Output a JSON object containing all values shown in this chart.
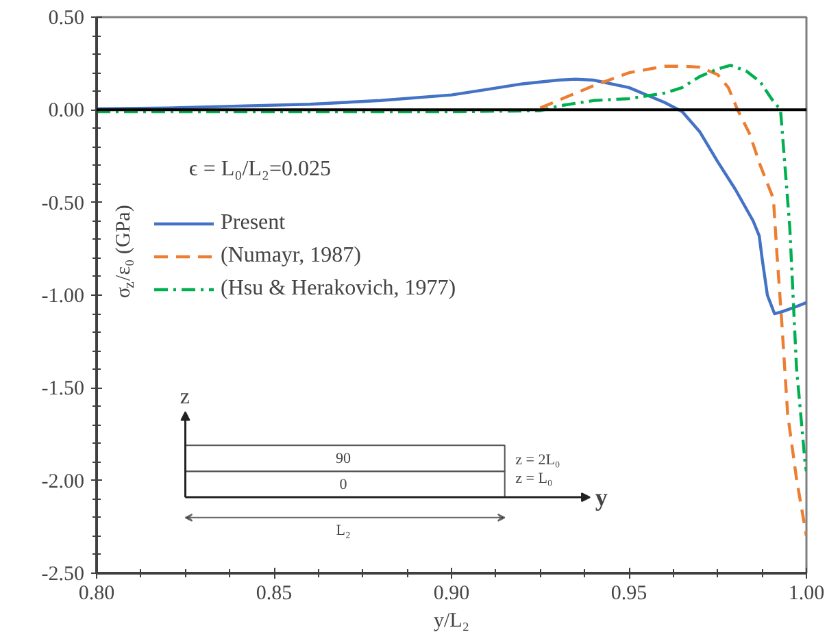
{
  "chart_data": {
    "type": "line",
    "xlabel": "y/L₂",
    "ylabel": "σ$_{z}$/ε₀ (GPa)",
    "xlim": [
      0.8,
      1.0
    ],
    "ylim": [
      -2.5,
      0.5
    ],
    "xticks": [
      {
        "value": 0.8,
        "label": "0.80"
      },
      {
        "value": 0.8125,
        "label": null
      },
      {
        "value": 0.825,
        "label": null
      },
      {
        "value": 0.8375,
        "label": null
      },
      {
        "value": 0.85,
        "label": "0.85"
      },
      {
        "value": 0.8625,
        "label": null
      },
      {
        "value": 0.875,
        "label": null
      },
      {
        "value": 0.8875,
        "label": null
      },
      {
        "value": 0.9,
        "label": "0.90"
      },
      {
        "value": 0.9125,
        "label": null
      },
      {
        "value": 0.925,
        "label": null
      },
      {
        "value": 0.9375,
        "label": null
      },
      {
        "value": 0.95,
        "label": "0.95"
      },
      {
        "value": 0.9625,
        "label": null
      },
      {
        "value": 0.975,
        "label": null
      },
      {
        "value": 0.9875,
        "label": null
      },
      {
        "value": 1.0,
        "label": "1.00"
      }
    ],
    "yticks": [
      {
        "value": -2.5,
        "label": "-2.50"
      },
      {
        "value": -2.4,
        "label": null
      },
      {
        "value": -2.3,
        "label": null
      },
      {
        "value": -2.2,
        "label": null
      },
      {
        "value": -2.1,
        "label": null
      },
      {
        "value": -2.0,
        "label": "-2.00"
      },
      {
        "value": -1.9,
        "label": null
      },
      {
        "value": -1.8,
        "label": null
      },
      {
        "value": -1.7,
        "label": null
      },
      {
        "value": -1.6,
        "label": null
      },
      {
        "value": -1.5,
        "label": "-1.50"
      },
      {
        "value": -1.4,
        "label": null
      },
      {
        "value": -1.3,
        "label": null
      },
      {
        "value": -1.2,
        "label": null
      },
      {
        "value": -1.1,
        "label": null
      },
      {
        "value": -1.0,
        "label": "-1.00"
      },
      {
        "value": -0.9,
        "label": null
      },
      {
        "value": -0.8,
        "label": null
      },
      {
        "value": -0.7,
        "label": null
      },
      {
        "value": -0.6,
        "label": null
      },
      {
        "value": -0.5,
        "label": "-0.50"
      },
      {
        "value": -0.4,
        "label": null
      },
      {
        "value": -0.3,
        "label": null
      },
      {
        "value": -0.2,
        "label": null
      },
      {
        "value": -0.1,
        "label": null
      },
      {
        "value": 0.0,
        "label": "0.00"
      },
      {
        "value": 0.1,
        "label": null
      },
      {
        "value": 0.2,
        "label": null
      },
      {
        "value": 0.3,
        "label": null
      },
      {
        "value": 0.4,
        "label": null
      },
      {
        "value": 0.5,
        "label": "0.50"
      }
    ],
    "grid": false,
    "legend": "top left",
    "marker": "none",
    "ref_lines": [
      {
        "axis": "y",
        "value": 0,
        "color": "#000000",
        "line_style": "solid"
      }
    ],
    "annotations": [
      "ϵ = L₀/L₂=0.025",
      "z",
      "y",
      "90",
      "0",
      "z = 2L₀",
      "z = L₀",
      "L₂"
    ],
    "series": [
      {
        "name": "Present",
        "color": "#4472c4",
        "line_style": "solid",
        "x": [
          0.8,
          0.82,
          0.84,
          0.86,
          0.88,
          0.9,
          0.91,
          0.92,
          0.93,
          0.935,
          0.94,
          0.95,
          0.955,
          0.96,
          0.965,
          0.97,
          0.975,
          0.98,
          0.985,
          0.9867,
          0.9875,
          0.989,
          0.991,
          0.993,
          0.996,
          1.0
        ],
        "values": [
          0.005,
          0.01,
          0.02,
          0.03,
          0.05,
          0.08,
          0.11,
          0.14,
          0.16,
          0.165,
          0.16,
          0.12,
          0.08,
          0.04,
          -0.01,
          -0.12,
          -0.28,
          -0.43,
          -0.6,
          -0.68,
          -0.8,
          -1.0,
          -1.1,
          -1.09,
          -1.07,
          -1.04
        ]
      },
      {
        "name": "(Numayr, 1987)",
        "color": "#ed7d31",
        "line_style": "dashed",
        "x": [
          0.925,
          0.93,
          0.94,
          0.95,
          0.96,
          0.965,
          0.97,
          0.975,
          0.978,
          0.9806,
          0.984,
          0.987,
          0.9907,
          0.9917,
          0.993,
          0.9947,
          0.9972,
          1.0
        ],
        "values": [
          0.01,
          0.05,
          0.13,
          0.2,
          0.235,
          0.235,
          0.23,
          0.19,
          0.12,
          0.0,
          -0.13,
          -0.3,
          -0.48,
          -0.78,
          -1.13,
          -1.64,
          -1.99,
          -2.3
        ]
      },
      {
        "name": "(Hsu & Herakovich, 1977)",
        "color": "#00b050",
        "line_style": "dashdot",
        "x": [
          0.8,
          0.85,
          0.9,
          0.925,
          0.93,
          0.94,
          0.95,
          0.96,
          0.965,
          0.97,
          0.975,
          0.9786,
          0.983,
          0.987,
          0.9905,
          0.9927,
          0.9953,
          0.9972,
          0.9996,
          1.0
        ],
        "values": [
          -0.01,
          -0.01,
          -0.01,
          -0.005,
          0.02,
          0.05,
          0.06,
          0.09,
          0.12,
          0.18,
          0.22,
          0.24,
          0.21,
          0.15,
          0.05,
          0.0,
          -0.63,
          -1.39,
          -1.9,
          -1.95
        ]
      }
    ]
  }
}
